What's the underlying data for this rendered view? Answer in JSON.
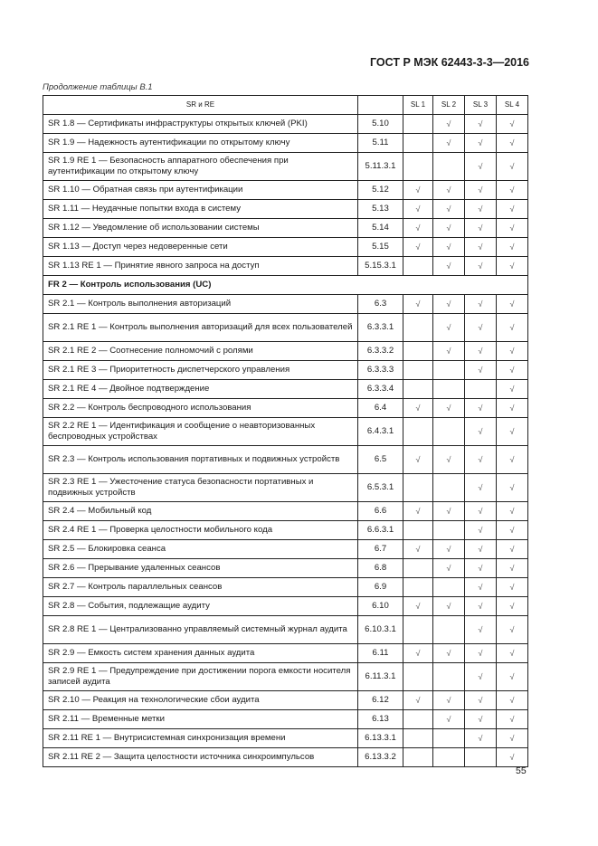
{
  "header": {
    "title": "ГОСТ Р МЭК 62443-3-3—2016"
  },
  "caption": "Продолжение таблицы В.1",
  "check_mark": "√",
  "table": {
    "columns": [
      "SR и RE",
      "",
      "SL 1",
      "SL 2",
      "SL 3",
      "SL 4"
    ],
    "rows": [
      {
        "name": "SR 1.8 — Сертификаты инфраструктуры открытых ключей (PKI)",
        "ref": "5.10",
        "sl": [
          false,
          true,
          true,
          true
        ]
      },
      {
        "name": "SR 1.9 — Надежность аутентификации по открытому ключу",
        "ref": "5.11",
        "sl": [
          false,
          true,
          true,
          true
        ]
      },
      {
        "name": "SR 1.9 RE 1 — Безопасность аппаратного обеспечения при аутентификации по открытому ключу",
        "ref": "5.11.3.1",
        "sl": [
          false,
          false,
          true,
          true
        ],
        "double": true
      },
      {
        "name": "SR 1.10 — Обратная связь при аутентификации",
        "ref": "5.12",
        "sl": [
          true,
          true,
          true,
          true
        ]
      },
      {
        "name": "SR 1.11 — Неудачные попытки входа в систему",
        "ref": "5.13",
        "sl": [
          true,
          true,
          true,
          true
        ]
      },
      {
        "name": "SR 1.12 — Уведомление об использовании системы",
        "ref": "5.14",
        "sl": [
          true,
          true,
          true,
          true
        ]
      },
      {
        "name": "SR 1.13 — Доступ через недоверенные сети",
        "ref": "5.15",
        "sl": [
          true,
          true,
          true,
          true
        ]
      },
      {
        "name": "SR 1.13 RE 1 — Принятие явного запроса на доступ",
        "ref": "5.15.3.1",
        "sl": [
          false,
          true,
          true,
          true
        ]
      },
      {
        "section": "FR 2 — Контроль использования (UC)"
      },
      {
        "name": "SR 2.1 — Контроль выполнения авторизаций",
        "ref": "6.3",
        "sl": [
          true,
          true,
          true,
          true
        ]
      },
      {
        "name": "SR 2.1 RE 1 — Контроль выполнения авторизаций для всех пользователей",
        "ref": "6.3.3.1",
        "sl": [
          false,
          true,
          true,
          true
        ],
        "double": true
      },
      {
        "name": "SR 2.1 RE 2 — Соотнесение полномочий с ролями",
        "ref": "6.3.3.2",
        "sl": [
          false,
          true,
          true,
          true
        ]
      },
      {
        "name": "SR 2.1 RE 3 — Приоритетность диспетчерского управления",
        "ref": "6.3.3.3",
        "sl": [
          false,
          false,
          true,
          true
        ]
      },
      {
        "name": "SR 2.1 RE 4 — Двойное подтверждение",
        "ref": "6.3.3.4",
        "sl": [
          false,
          false,
          false,
          true
        ]
      },
      {
        "name": "SR 2.2 — Контроль беспроводного использования",
        "ref": "6.4",
        "sl": [
          true,
          true,
          true,
          true
        ]
      },
      {
        "name": "SR 2.2 RE 1 — Идентификация и сообщение о неавторизованных беспроводных устройствах",
        "ref": "6.4.3.1",
        "sl": [
          false,
          false,
          true,
          true
        ],
        "double": true
      },
      {
        "name": "SR 2.3 — Контроль использования портативных и подвижных устройств",
        "ref": "6.5",
        "sl": [
          true,
          true,
          true,
          true
        ],
        "double": true
      },
      {
        "name": "SR 2.3 RE 1 — Ужесточение статуса безопасности портативных и подвижных устройств",
        "ref": "6.5.3.1",
        "sl": [
          false,
          false,
          true,
          true
        ],
        "double": true
      },
      {
        "name": "SR 2.4 — Мобильный код",
        "ref": "6.6",
        "sl": [
          true,
          true,
          true,
          true
        ]
      },
      {
        "name": "SR 2.4 RE 1 — Проверка целостности мобильного кода",
        "ref": "6.6.3.1",
        "sl": [
          false,
          false,
          true,
          true
        ]
      },
      {
        "name": "SR 2.5 — Блокировка сеанса",
        "ref": "6.7",
        "sl": [
          true,
          true,
          true,
          true
        ]
      },
      {
        "name": "SR 2.6 — Прерывание удаленных сеансов",
        "ref": "6.8",
        "sl": [
          false,
          true,
          true,
          true
        ]
      },
      {
        "name": "SR 2.7 — Контроль параллельных сеансов",
        "ref": "6.9",
        "sl": [
          false,
          false,
          true,
          true
        ]
      },
      {
        "name": "SR 2.8 — События, подлежащие аудиту",
        "ref": "6.10",
        "sl": [
          true,
          true,
          true,
          true
        ]
      },
      {
        "name": "SR 2.8 RE 1 — Централизованно управляемый системный журнал аудита",
        "ref": "6.10.3.1",
        "sl": [
          false,
          false,
          true,
          true
        ],
        "double": true
      },
      {
        "name": "SR 2.9 — Емкость систем хранения данных аудита",
        "ref": "6.11",
        "sl": [
          true,
          true,
          true,
          true
        ]
      },
      {
        "name": "SR 2.9 RE 1 — Предупреждение при достижении порога емкости носителя записей аудита",
        "ref": "6.11.3.1",
        "sl": [
          false,
          false,
          true,
          true
        ],
        "double": true
      },
      {
        "name": "SR 2.10 — Реакция на технологические сбои аудита",
        "ref": "6.12",
        "sl": [
          true,
          true,
          true,
          true
        ]
      },
      {
        "name": "SR 2.11 — Временные метки",
        "ref": "6.13",
        "sl": [
          false,
          true,
          true,
          true
        ]
      },
      {
        "name": "SR 2.11 RE 1 — Внутрисистемная синхронизация времени",
        "ref": "6.13.3.1",
        "sl": [
          false,
          false,
          true,
          true
        ]
      },
      {
        "name": "SR 2.11 RE 2 — Защита целостности источника синхроимпульсов",
        "ref": "6.13.3.2",
        "sl": [
          false,
          false,
          false,
          true
        ]
      }
    ]
  },
  "footer": {
    "page_number": "55"
  }
}
